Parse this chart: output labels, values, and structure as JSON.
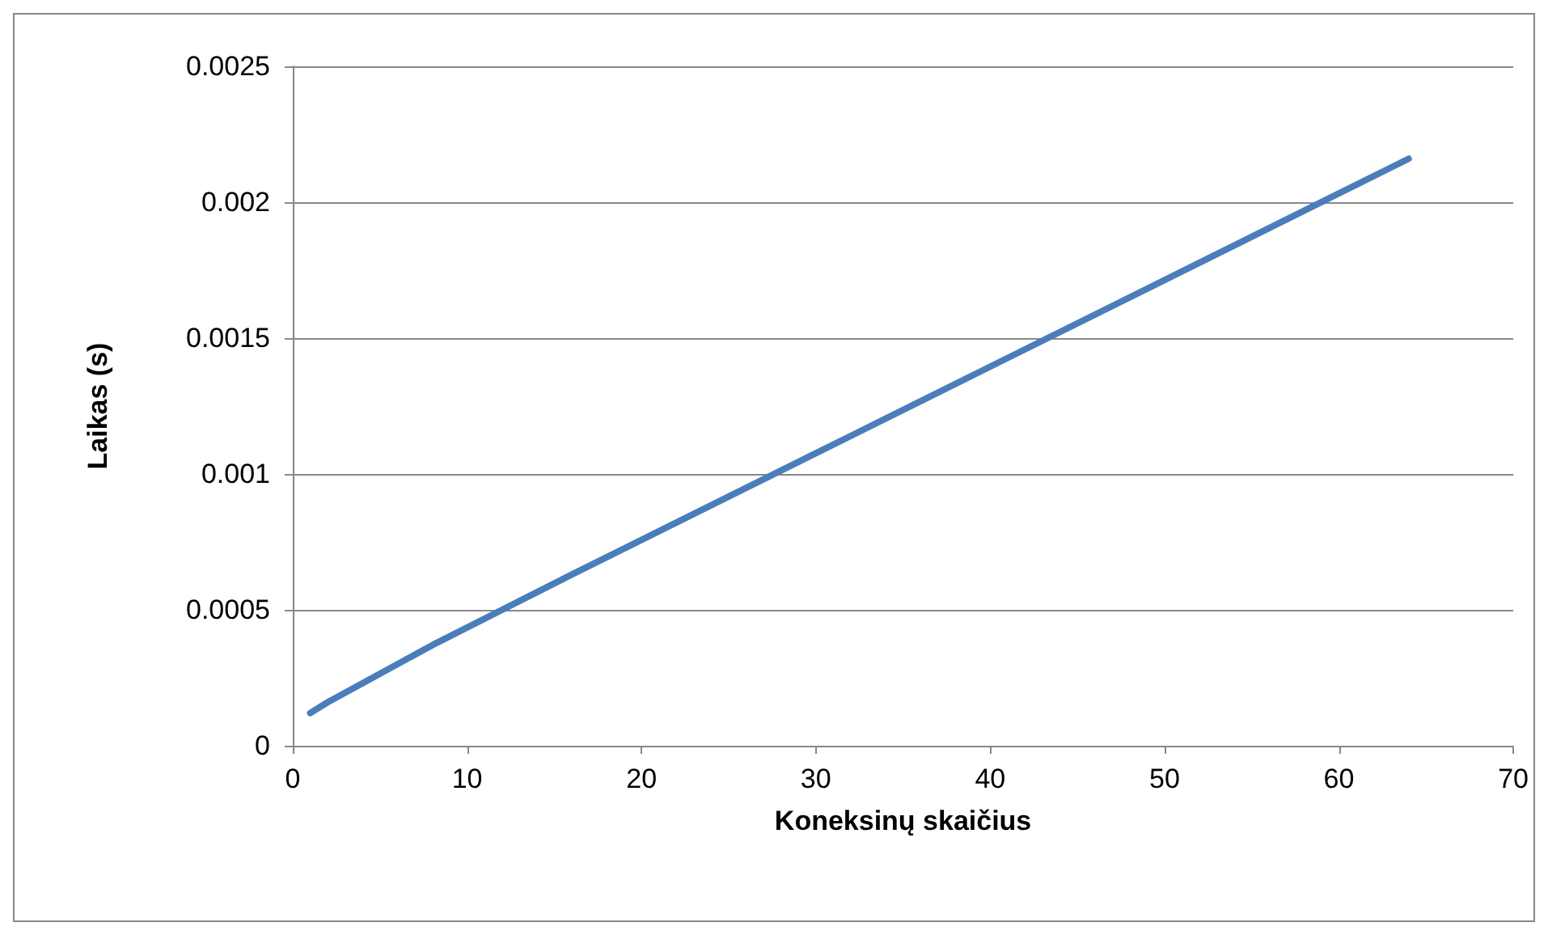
{
  "chart_data": {
    "type": "line",
    "xlabel": "Koneksinų skaičius",
    "ylabel": "Laikas (s)",
    "x": [
      1,
      2,
      4,
      8,
      16,
      32,
      64
    ],
    "series": [
      {
        "color": "#4a7ebb",
        "values": [
          0.00012,
          0.00016,
          0.00023,
          0.00037,
          0.00063,
          0.00114,
          0.00216
        ]
      }
    ],
    "xlim": [
      0,
      70
    ],
    "xticks": [
      0,
      10,
      20,
      30,
      40,
      50,
      60,
      70
    ],
    "ylim": [
      0,
      0.0025
    ],
    "yticks": [
      0,
      0.0005,
      0.001,
      0.0015,
      0.002,
      0.0025
    ],
    "grid": "y",
    "marker": "none",
    "line_style": "solid"
  }
}
